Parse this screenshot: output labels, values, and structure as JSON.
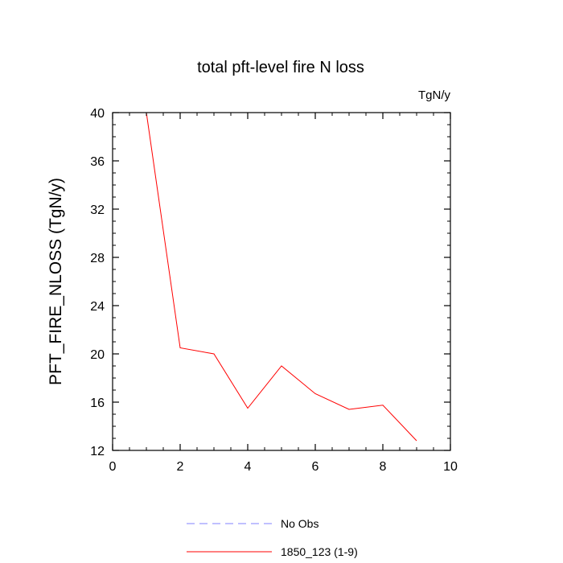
{
  "chart_data": {
    "type": "line",
    "title": "total pft-level fire N loss",
    "units_label": "TgN/y",
    "ylabel": "PFT_FIRE_NLOSS  (TgN/y)",
    "xlabel": "",
    "xlim": [
      0,
      10
    ],
    "ylim": [
      12,
      40
    ],
    "xticks": [
      0,
      2,
      4,
      6,
      8,
      10
    ],
    "yticks": [
      12,
      16,
      20,
      24,
      28,
      32,
      36,
      40
    ],
    "grid": false,
    "legend_position": "bottom",
    "series": [
      {
        "name": "No Obs",
        "color": "#8080ff",
        "dashed": true,
        "x": [],
        "values": []
      },
      {
        "name": "1850_123 (1-9)",
        "color": "#ff0000",
        "dashed": false,
        "x": [
          1,
          2,
          3,
          4,
          5,
          6,
          7,
          8,
          9
        ],
        "values": [
          40.0,
          20.5,
          20.0,
          15.5,
          19.0,
          16.7,
          15.4,
          15.75,
          12.8
        ]
      }
    ]
  }
}
